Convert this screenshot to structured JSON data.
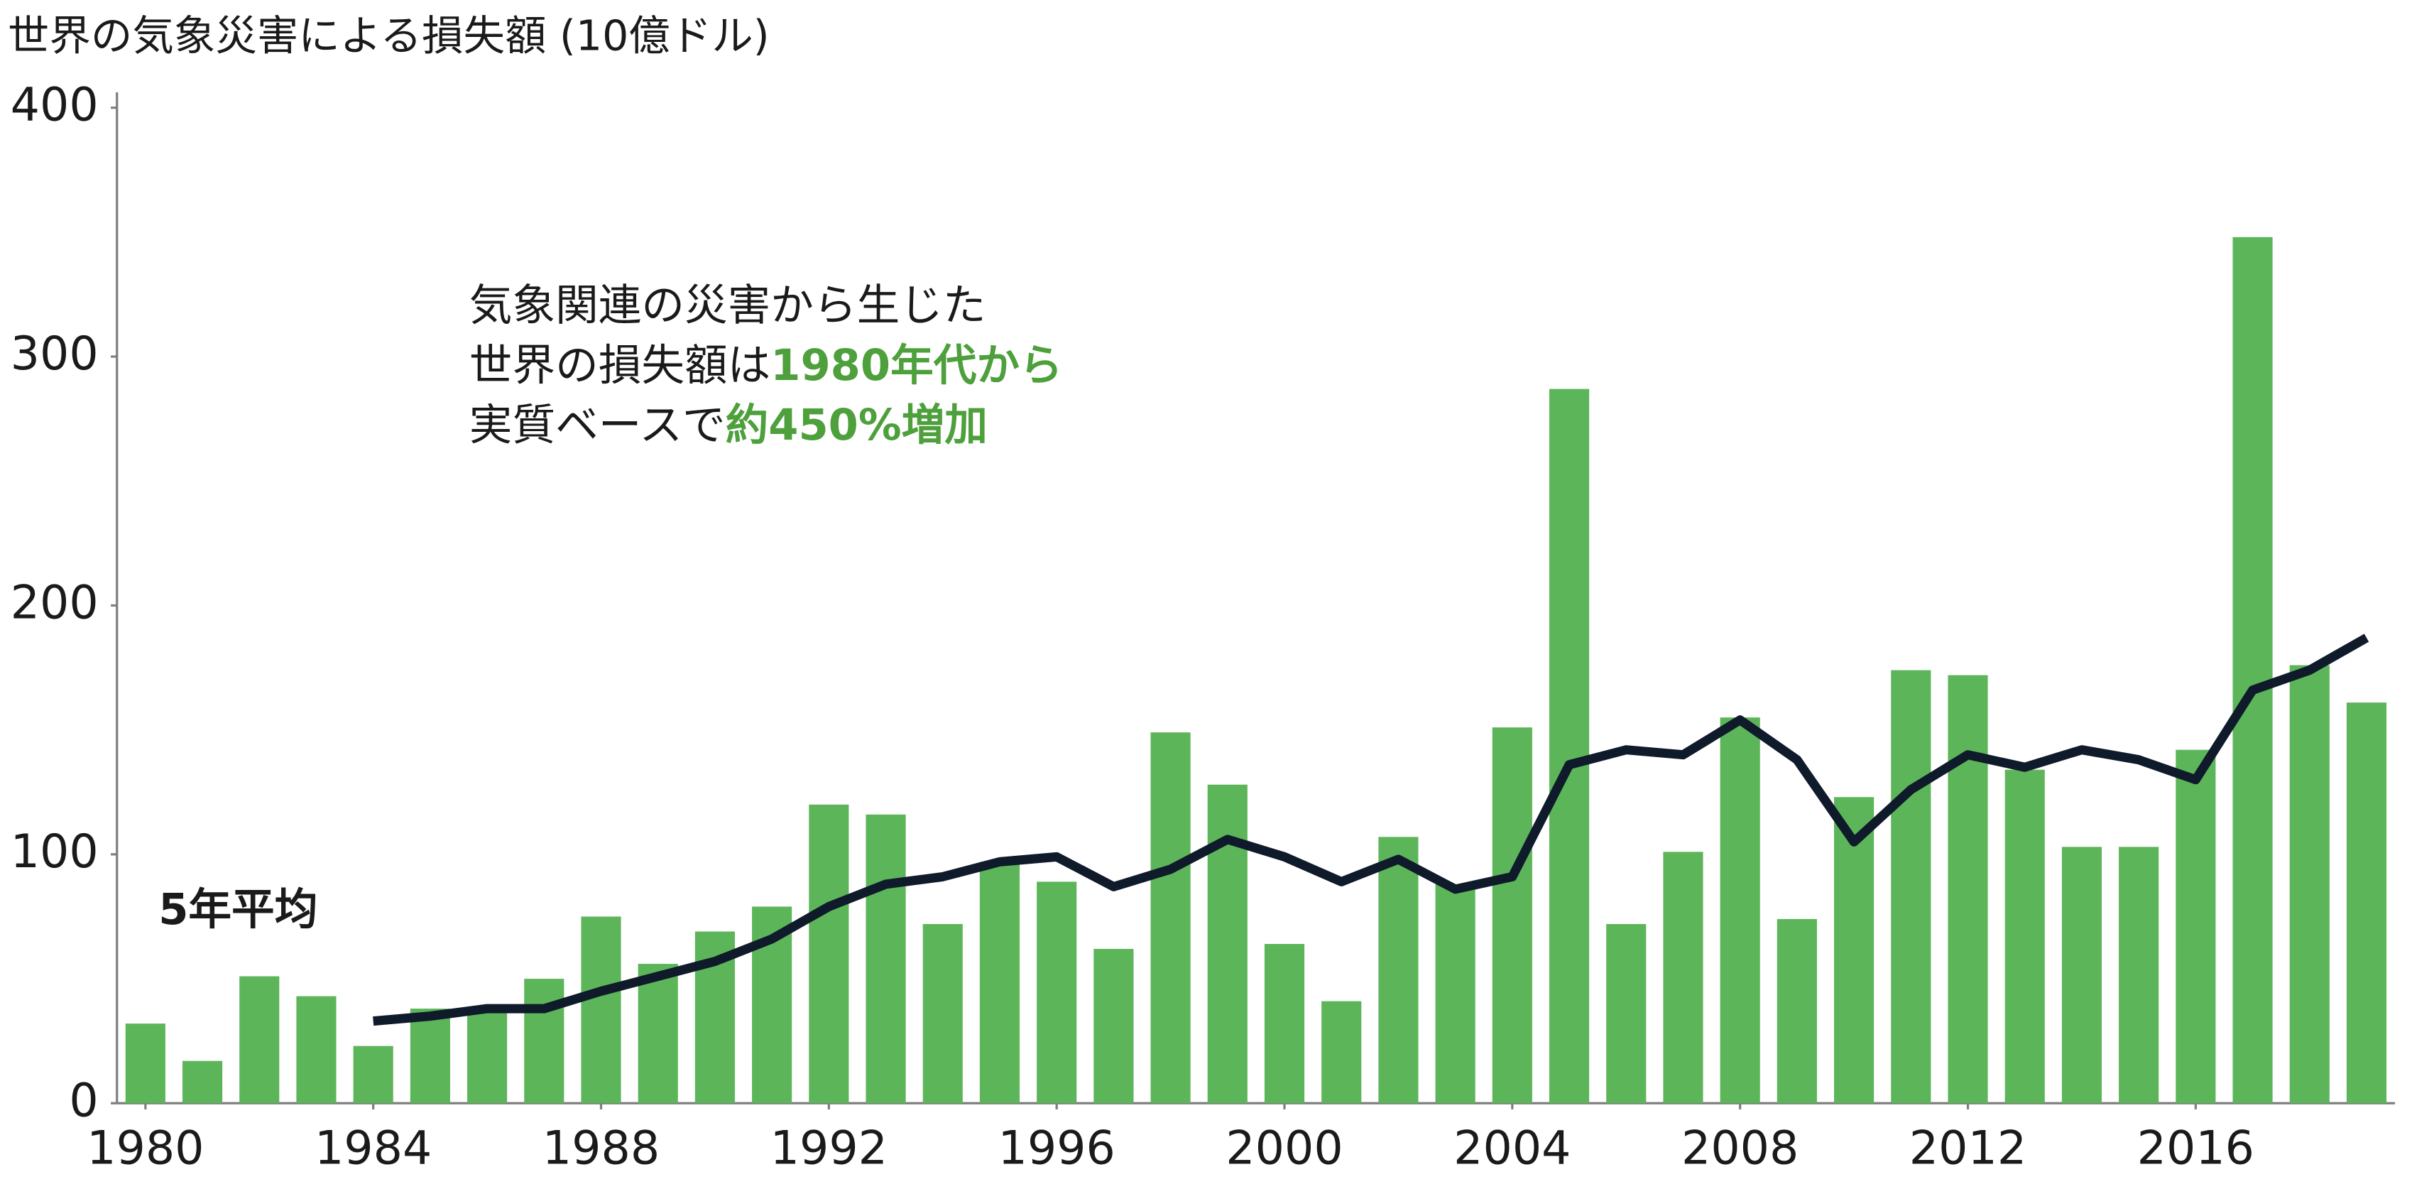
{
  "chart_data": {
    "type": "bar",
    "title": "世界の気象災害による損失額 (10億ドル)",
    "x": [
      1980,
      1981,
      1982,
      1983,
      1984,
      1985,
      1986,
      1987,
      1988,
      1989,
      1990,
      1991,
      1992,
      1993,
      1994,
      1995,
      1996,
      1997,
      1998,
      1999,
      2000,
      2001,
      2002,
      2003,
      2004,
      2005,
      2006,
      2007,
      2008,
      2009,
      2010,
      2011,
      2012,
      2013,
      2014,
      2015,
      2016,
      2017,
      2018,
      2019
    ],
    "xlim": [
      1979.5,
      2019.5
    ],
    "xticks": [
      1980,
      1984,
      1988,
      1992,
      1996,
      2000,
      2004,
      2008,
      2012,
      2016
    ],
    "ylim": [
      0,
      400
    ],
    "yticks": [
      0,
      100,
      200,
      300,
      400
    ],
    "grid": false,
    "series": [
      {
        "type": "bar",
        "color": "#5db55a",
        "values": [
          32,
          17,
          51,
          43,
          23,
          38,
          38,
          50,
          75,
          56,
          69,
          79,
          120,
          116,
          72,
          97,
          89,
          62,
          149,
          128,
          64,
          41,
          107,
          88,
          151,
          287,
          72,
          101,
          155,
          74,
          123,
          174,
          172,
          134,
          103,
          103,
          142,
          348,
          176,
          161
        ]
      },
      {
        "type": "line",
        "name": "5年平均",
        "color": "#0f1a2b",
        "values": [
          null,
          null,
          null,
          null,
          33,
          35,
          38,
          38,
          45,
          51,
          57,
          66,
          79,
          88,
          91,
          97,
          99,
          87,
          94,
          106,
          99,
          89,
          98,
          86,
          91,
          136,
          142,
          140,
          154,
          138,
          105,
          126,
          140,
          135,
          142,
          138,
          130,
          166,
          174,
          187
        ]
      }
    ],
    "annotation": {
      "highlight_color": "#4ea03c",
      "lines": [
        [
          "気象関連の災害から生じた"
        ],
        [
          "世界の損失額は",
          "1980年代から"
        ],
        [
          "実質ベースで",
          "約450%増加"
        ]
      ]
    }
  }
}
